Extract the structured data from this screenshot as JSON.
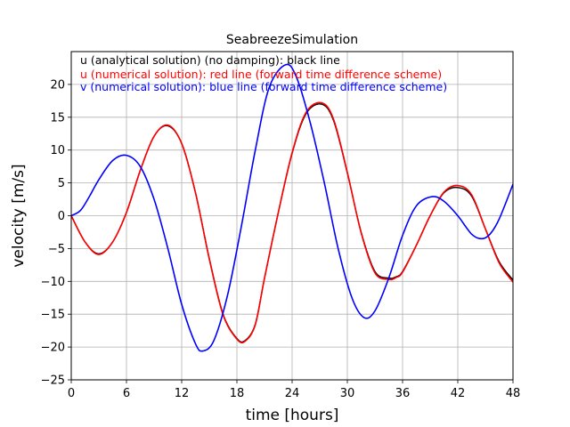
{
  "chart_data": {
    "type": "line",
    "title": "SeabreezeSimulation",
    "xlabel": "time [hours]",
    "ylabel": "velocity [m/s]",
    "xlim": [
      0,
      48
    ],
    "ylim": [
      -25,
      25
    ],
    "xticks": [
      0,
      6,
      12,
      18,
      24,
      30,
      36,
      42,
      48
    ],
    "yticks": [
      -25,
      -20,
      -15,
      -10,
      -5,
      0,
      5,
      10,
      15,
      20
    ],
    "grid": true,
    "annotations": [
      {
        "text": "u (analytical solution) (no damping): black line",
        "color": "#000000"
      },
      {
        "text": "u (numerical solution): red line (forward time difference scheme)",
        "color": "#ff0000"
      },
      {
        "text": "v (numerical solution): blue line (forward time difference scheme)",
        "color": "#0000ff"
      }
    ],
    "series": [
      {
        "color": "#000000",
        "x": [
          0,
          1.5,
          3,
          4.5,
          6,
          7.5,
          9,
          10.5,
          12,
          13.5,
          15,
          16.5,
          18,
          18.9,
          20,
          21,
          22.5,
          24,
          25.5,
          27.2,
          28.5,
          30,
          31.5,
          33,
          34.5,
          35.3,
          36,
          37.5,
          39,
          40.5,
          42,
          43.5,
          45,
          46.5,
          48
        ],
        "y": [
          0,
          -4,
          -5.8,
          -4,
          0.5,
          6.9,
          12.1,
          13.7,
          11,
          3.5,
          -6.5,
          -15,
          -18.7,
          -19,
          -16.5,
          -9.5,
          0.5,
          9.5,
          15.5,
          17,
          14.5,
          6.5,
          -2.5,
          -8.5,
          -9.5,
          -9.3,
          -8.5,
          -4.5,
          0,
          3.5,
          4.3,
          3,
          -2,
          -7,
          -9.8
        ]
      },
      {
        "color": "#ff0000",
        "x": [
          0,
          1.5,
          3,
          4.5,
          6,
          7.5,
          9,
          10.5,
          12,
          13.5,
          15,
          16.5,
          18,
          18.9,
          20,
          21,
          22.5,
          24,
          25.5,
          27.2,
          28.5,
          30,
          31.5,
          33,
          34.5,
          35.3,
          36,
          37.5,
          39,
          40.5,
          42,
          43.5,
          45,
          46.5,
          48
        ],
        "y": [
          0,
          -4,
          -5.9,
          -4,
          0.5,
          6.9,
          12.1,
          13.8,
          11,
          3.5,
          -6.6,
          -15.1,
          -18.8,
          -19.1,
          -16.6,
          -9.5,
          0.5,
          9.6,
          15.7,
          17.2,
          14.7,
          6.6,
          -2.6,
          -8.7,
          -9.7,
          -9.4,
          -8.6,
          -4.5,
          0,
          3.6,
          4.6,
          3.2,
          -2,
          -7.2,
          -10.1
        ]
      },
      {
        "color": "#0000ff",
        "x": [
          0,
          1,
          2,
          3,
          4.5,
          6,
          7.5,
          9,
          10.5,
          12,
          13.5,
          14.3,
          15.5,
          17,
          18.5,
          20,
          21.5,
          23.3,
          24.5,
          26,
          27.5,
          29,
          30.5,
          31.8,
          33,
          34.5,
          36,
          37.5,
          39.2,
          40.5,
          42,
          43.5,
          44.6,
          45.5,
          46.5,
          48
        ],
        "y": [
          0,
          0.8,
          3,
          5.5,
          8.4,
          9.2,
          7.5,
          2.5,
          -5,
          -13.5,
          -19.5,
          -20.6,
          -19,
          -12,
          -1.5,
          10,
          19.5,
          23,
          21,
          14,
          5,
          -5,
          -12.5,
          -15.5,
          -14.5,
          -9.5,
          -3,
          1.5,
          2.9,
          2.2,
          0,
          -2.8,
          -3.5,
          -2.8,
          -0.5,
          4.8
        ]
      }
    ]
  }
}
